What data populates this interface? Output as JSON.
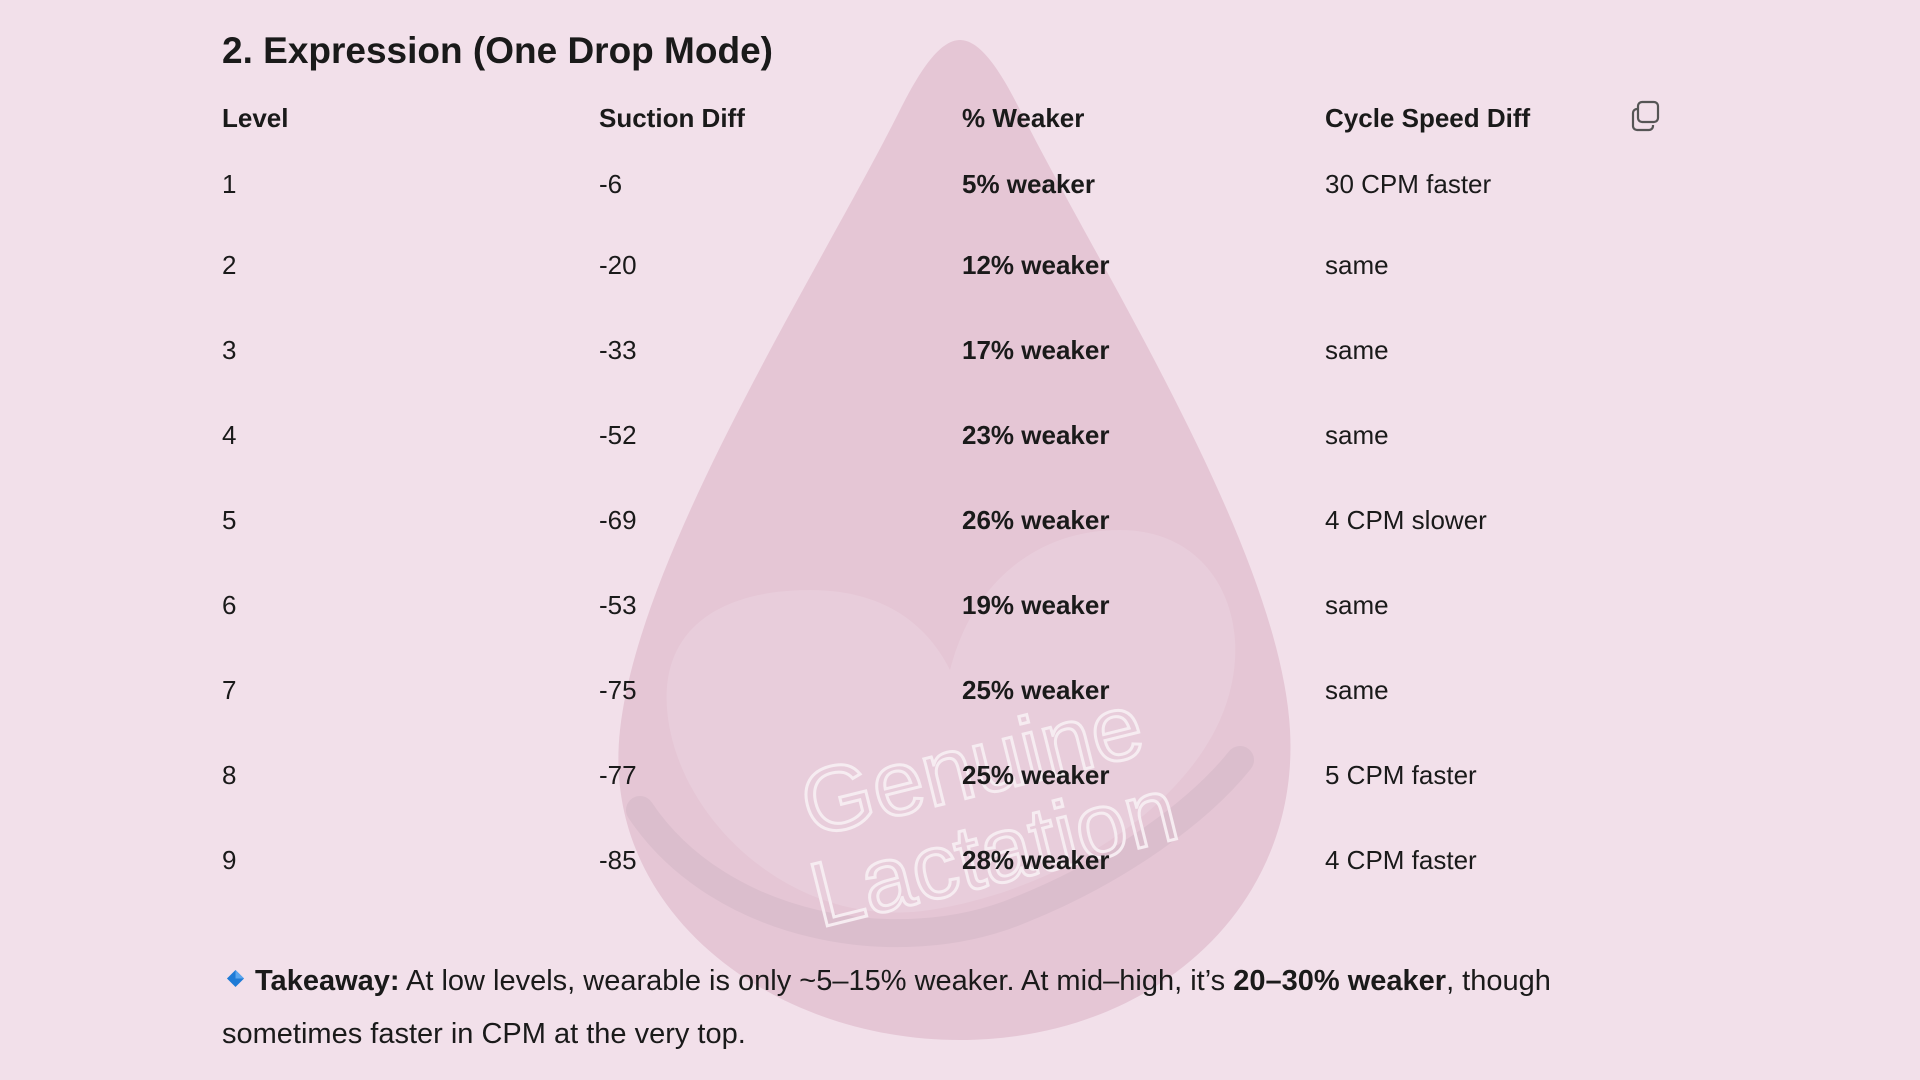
{
  "section": {
    "title": "2. Expression (One Drop Mode)"
  },
  "table": {
    "headers": [
      "Level",
      "Suction Diff",
      "% Weaker",
      "Cycle Speed Diff"
    ],
    "rows": [
      {
        "level": "1",
        "suction_diff": "-6",
        "weaker": "5% weaker",
        "cycle_speed_diff": "30 CPM faster"
      },
      {
        "level": "2",
        "suction_diff": "-20",
        "weaker": "12% weaker",
        "cycle_speed_diff": "same"
      },
      {
        "level": "3",
        "suction_diff": "-33",
        "weaker": "17% weaker",
        "cycle_speed_diff": "same"
      },
      {
        "level": "4",
        "suction_diff": "-52",
        "weaker": "23% weaker",
        "cycle_speed_diff": "same"
      },
      {
        "level": "5",
        "suction_diff": "-69",
        "weaker": "26% weaker",
        "cycle_speed_diff": "4 CPM slower"
      },
      {
        "level": "6",
        "suction_diff": "-53",
        "weaker": "19% weaker",
        "cycle_speed_diff": "same"
      },
      {
        "level": "7",
        "suction_diff": "-75",
        "weaker": "25% weaker",
        "cycle_speed_diff": "same"
      },
      {
        "level": "8",
        "suction_diff": "-77",
        "weaker": "25% weaker",
        "cycle_speed_diff": "5 CPM faster"
      },
      {
        "level": "9",
        "suction_diff": "-85",
        "weaker": "28% weaker",
        "cycle_speed_diff": "4 CPM faster"
      }
    ]
  },
  "takeaway": {
    "label": "Takeaway:",
    "text_before": " At low levels, wearable is only ~5–15% weaker. At mid–high, it’s ",
    "emphasis": "20–30% weaker",
    "text_after": ", though sometimes faster in CPM at the very top."
  },
  "watermark": {
    "line1": "Genuine",
    "line2": "Lactation"
  },
  "icons": {
    "copy": "copy-icon",
    "diamond": "blue-diamond-icon",
    "watermark": "milk-drop-logo"
  },
  "colors": {
    "background": "#f2e0ea",
    "drop": "#e3c3d3",
    "diamond": "#1f7bd6",
    "text": "#1a1a1a"
  }
}
